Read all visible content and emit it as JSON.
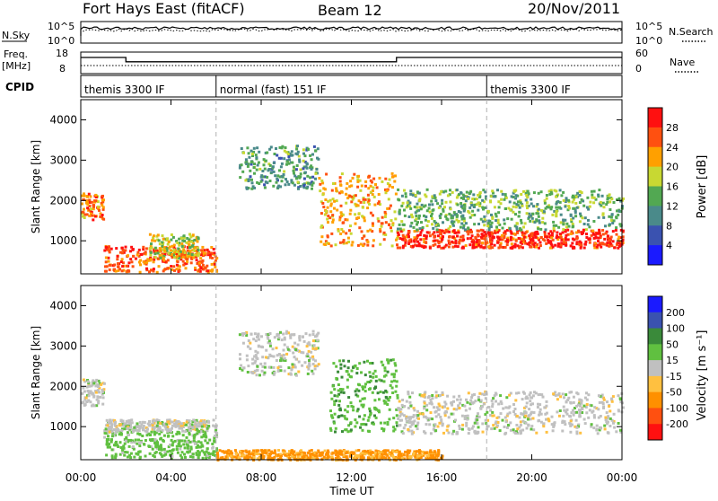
{
  "header": {
    "station": "Fort Hays East (fitACF)",
    "beam": "Beam 12",
    "date": "20/Nov/2011"
  },
  "noise_panel": {
    "left_label": "N.Sky",
    "right_label": "N.Search",
    "ticks": [
      "10^5",
      "10^0"
    ],
    "yscale": "log"
  },
  "freq_panel": {
    "left_label": "Freq.",
    "left_unit": "[MHz]",
    "right_label": "Nave",
    "left_ticks": [
      "18",
      "8"
    ],
    "right_ticks": [
      "60",
      "0"
    ],
    "freq_segments": [
      {
        "x0": 0,
        "x1": 2.0,
        "level": 0.75
      },
      {
        "x0": 2.0,
        "x1": 14.0,
        "level": 0.55
      },
      {
        "x0": 14.0,
        "x1": 24.0,
        "level": 0.75
      }
    ]
  },
  "cpid": {
    "label": "CPID",
    "segments": [
      {
        "label": "themis 3300 IF",
        "start": 0
      },
      {
        "label": "normal (fast) 151 IF",
        "start": 6
      },
      {
        "label": "themis 3300 IF",
        "start": 18
      }
    ]
  },
  "axes": {
    "x_ticks": [
      "00:00",
      "04:00",
      "08:00",
      "12:00",
      "16:00",
      "20:00",
      "00:00"
    ],
    "x_tick_hours": [
      0,
      4,
      8,
      12,
      16,
      20,
      24
    ],
    "xlabel": "Time UT",
    "ylabel": "Slant Range [km]",
    "y_ticks": [
      "1000",
      "2000",
      "3000",
      "4000"
    ],
    "y_tick_values": [
      1000,
      2000,
      3000,
      4000
    ],
    "ylim": [
      180,
      4500
    ],
    "xlim": [
      0,
      24
    ]
  },
  "power_colorbar": {
    "label": "Power [dB]",
    "ticks": [
      "4",
      "8",
      "12",
      "16",
      "20",
      "24",
      "28"
    ],
    "colors": [
      "#1a1aff",
      "#3a52b0",
      "#4a8a8a",
      "#52a852",
      "#c8d832",
      "#ffa000",
      "#ff5010",
      "#ff1010"
    ]
  },
  "velocity_colorbar": {
    "label": "Velocity [m s⁻¹]",
    "ticks": [
      "200",
      "100",
      "50",
      "15",
      "-15",
      "-50",
      "-100",
      "-200"
    ],
    "colors": [
      "#1a1aff",
      "#3a52b0",
      "#3a8a3a",
      "#60c040",
      "#c0c0c0",
      "#ffc040",
      "#ff9000",
      "#ff5010",
      "#ff1010"
    ]
  },
  "chart_data": [
    {
      "type": "heatmap",
      "title": "",
      "xlabel": "Time UT",
      "ylabel": "Slant Range [km]",
      "zlabel": "Power [dB]",
      "xlim": [
        0,
        24
      ],
      "ylim": [
        180,
        4500
      ],
      "regions": [
        {
          "t": [
            0.0,
            1.0
          ],
          "r": [
            1550,
            2200
          ],
          "power": 22
        },
        {
          "t": [
            1.0,
            6.0
          ],
          "r": [
            250,
            900
          ],
          "power": 24
        },
        {
          "t": [
            3.0,
            5.2
          ],
          "r": [
            600,
            1200
          ],
          "power": 16
        },
        {
          "t": [
            7.0,
            10.5
          ],
          "r": [
            2300,
            3400
          ],
          "power": 10
        },
        {
          "t": [
            10.5,
            14.0
          ],
          "r": [
            900,
            2700
          ],
          "power": 20
        },
        {
          "t": [
            14.0,
            24.0
          ],
          "r": [
            850,
            1300
          ],
          "power": 26
        },
        {
          "t": [
            14.0,
            24.0
          ],
          "r": [
            1300,
            2300
          ],
          "power": 12
        }
      ]
    },
    {
      "type": "heatmap",
      "title": "",
      "xlabel": "Time UT",
      "ylabel": "Slant Range [km]",
      "zlabel": "Velocity [m s⁻¹]",
      "xlim": [
        0,
        24
      ],
      "ylim": [
        180,
        4500
      ],
      "regions": [
        {
          "t": [
            0.0,
            1.0
          ],
          "r": [
            1550,
            2200
          ],
          "velocity": 0
        },
        {
          "t": [
            1.0,
            6.0
          ],
          "r": [
            250,
            900
          ],
          "velocity": 30
        },
        {
          "t": [
            1.0,
            6.0
          ],
          "r": [
            900,
            1200
          ],
          "velocity": 0
        },
        {
          "t": [
            7.0,
            10.5
          ],
          "r": [
            2300,
            3400
          ],
          "velocity": 0
        },
        {
          "t": [
            11.0,
            14.0
          ],
          "r": [
            900,
            2700
          ],
          "velocity": 40
        },
        {
          "t": [
            14.0,
            24.0
          ],
          "r": [
            850,
            1900
          ],
          "velocity": 0
        },
        {
          "t": [
            6.0,
            16.0
          ],
          "r": [
            200,
            450
          ],
          "velocity": -60
        }
      ]
    }
  ]
}
